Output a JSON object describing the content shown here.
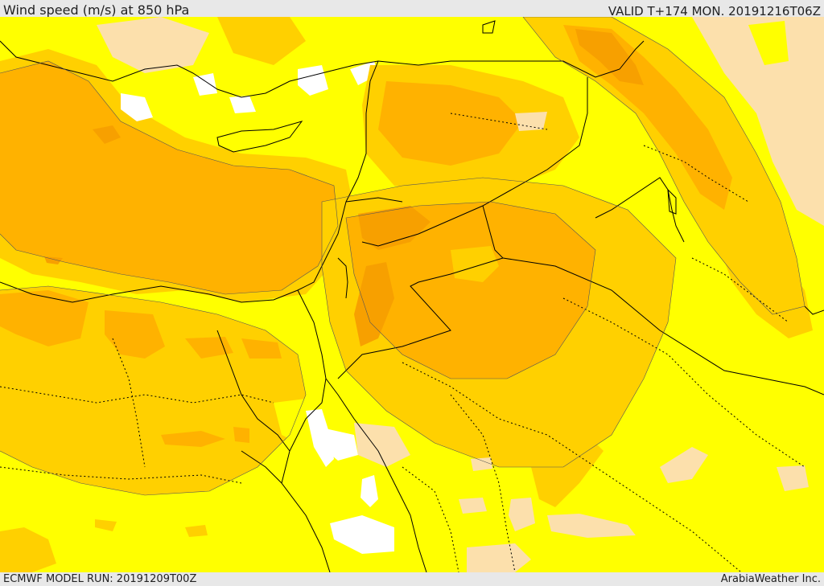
{
  "header": {
    "title": "Wind speed (m/s) at 850 hPa",
    "valid": "VALID T+174 MON. 20191216T06Z"
  },
  "footer": {
    "model_run": "ECMWF MODEL RUN: 20191209T00Z",
    "credit": "ArabiaWeather Inc."
  },
  "palette": {
    "calm": "#ffffff",
    "low": "#fce0ac",
    "medium": "#ffff00",
    "high": "#ffd000",
    "higher": "#ffb200",
    "highest": "#f7a000",
    "line": "#000000"
  }
}
